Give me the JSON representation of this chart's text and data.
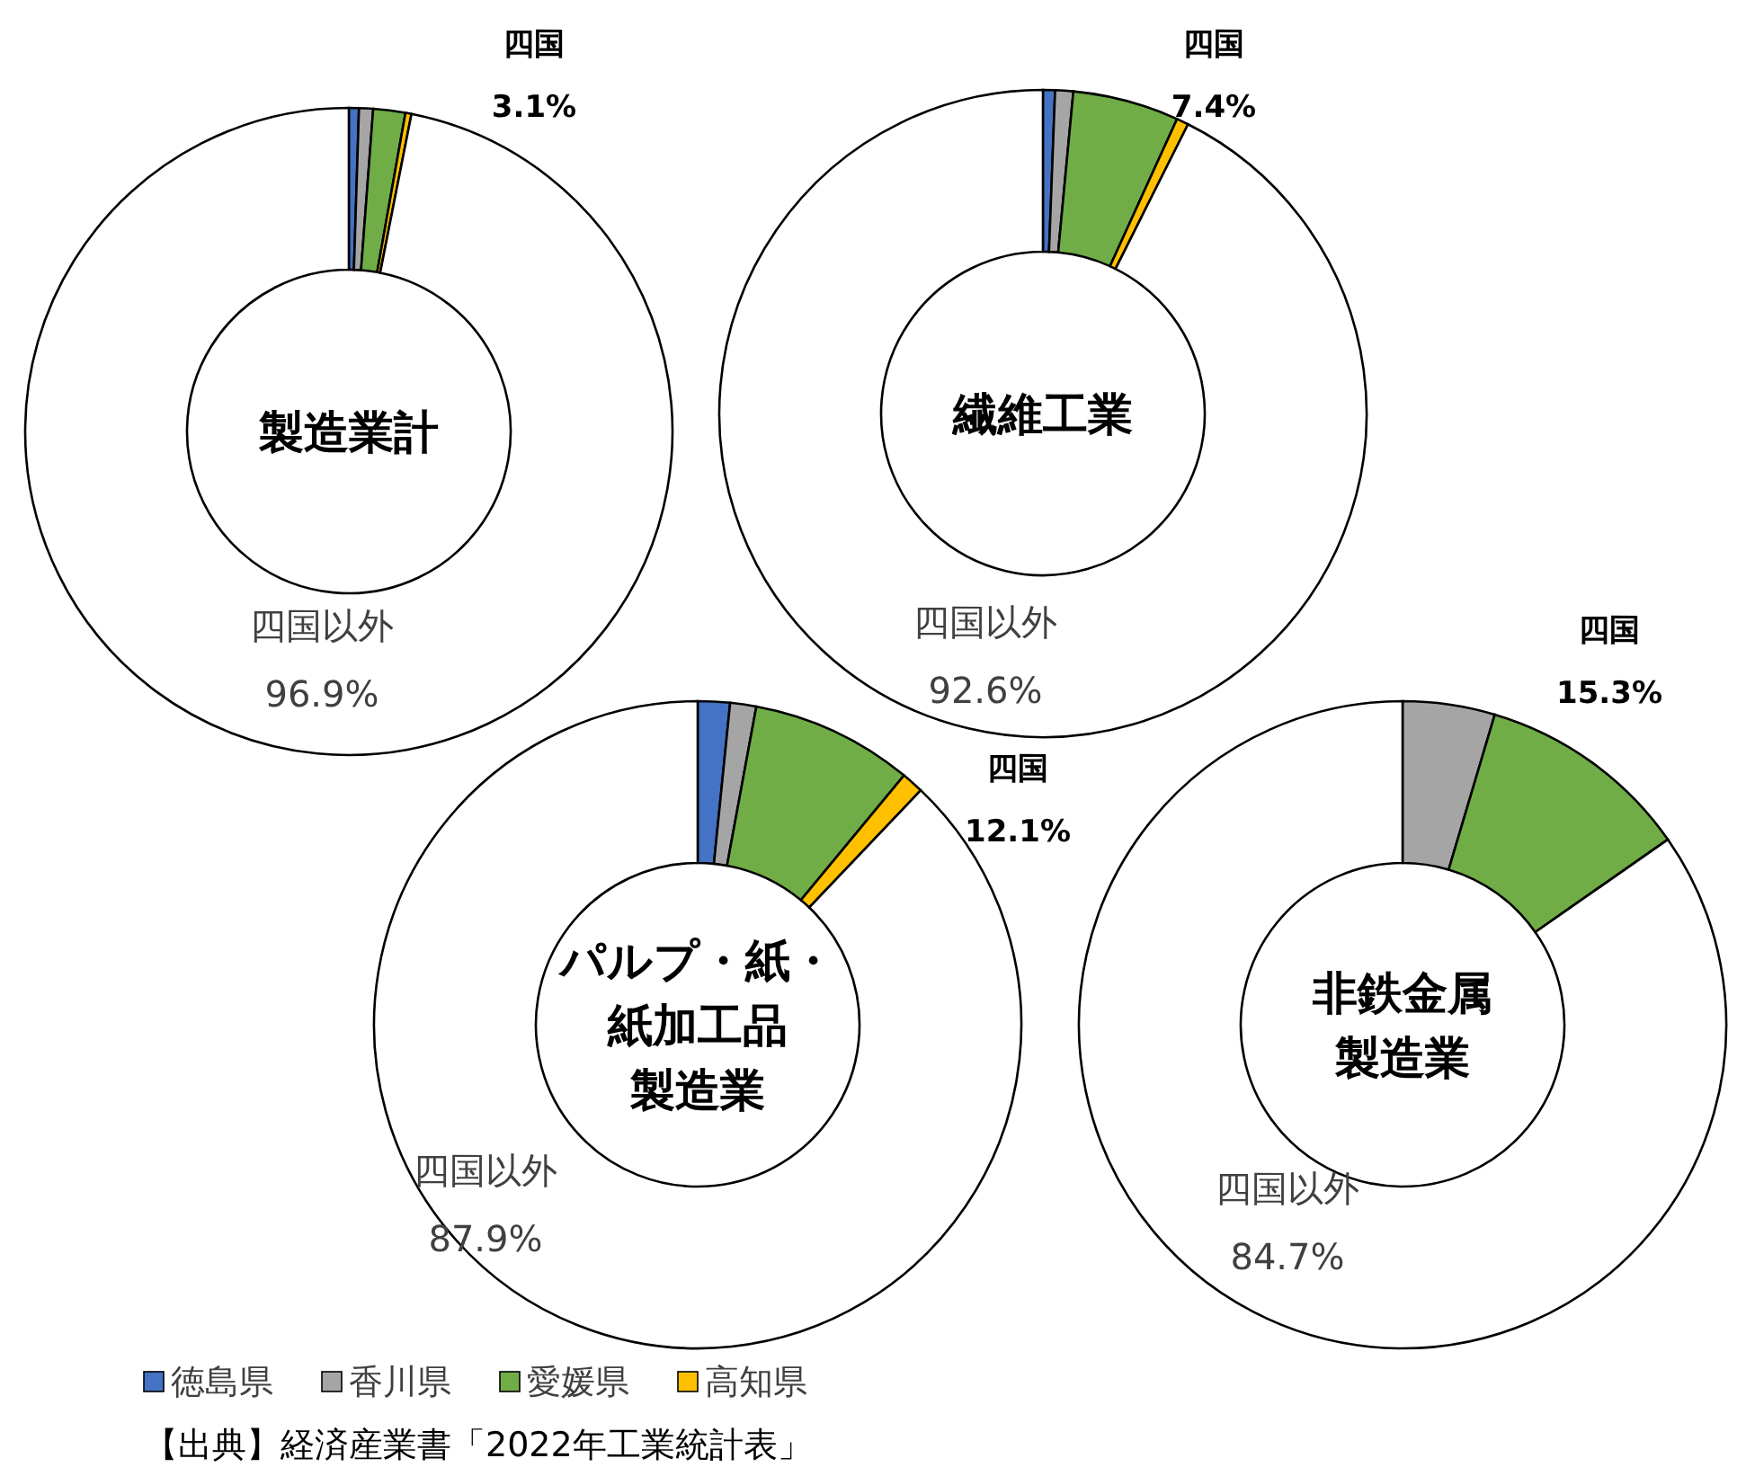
{
  "chart_data": [
    {
      "type": "donut",
      "title": "製造業計",
      "categories": [
        null,
        null,
        null,
        null,
        "四国以外"
      ],
      "values": [
        0.5,
        0.7,
        1.6,
        0.3,
        96.9
      ],
      "colors": [
        "#4472c4",
        "#a5a5a5",
        "#70ad47",
        "#ffc000",
        "#ffffff"
      ],
      "value_labels": [
        null,
        null,
        null,
        null,
        "96.9%"
      ],
      "annotations": [
        "四国",
        "3.1%"
      ],
      "legend": false
    },
    {
      "type": "donut",
      "title": "繊維工業",
      "categories": [
        null,
        null,
        null,
        null,
        "四国以外"
      ],
      "values": [
        0.6,
        0.9,
        5.3,
        0.6,
        92.6
      ],
      "colors": [
        "#4472c4",
        "#a5a5a5",
        "#70ad47",
        "#ffc000",
        "#ffffff"
      ],
      "value_labels": [
        null,
        null,
        null,
        null,
        "92.6%"
      ],
      "annotations": [
        "四国",
        "7.4%"
      ],
      "legend": false
    },
    {
      "type": "donut",
      "title": "パルプ・紙・紙加工品製造業",
      "categories": [
        "徳島県",
        "香川県",
        "愛媛県",
        "高知県",
        "四国以外"
      ],
      "values": [
        1.6,
        1.3,
        8.1,
        1.1,
        87.9
      ],
      "colors": [
        "#4472c4",
        "#a5a5a5",
        "#70ad47",
        "#ffc000",
        "#ffffff"
      ],
      "value_labels": [
        null,
        null,
        null,
        null,
        "87.9%"
      ],
      "annotations": [
        "四国",
        "12.1%",
        "【出典】経済産業書「2022年工業統計表」"
      ],
      "legend": "bottom"
    },
    {
      "type": "donut",
      "title": "非鉄金属製造業",
      "categories": [
        null,
        null,
        null,
        null,
        "四国以外"
      ],
      "values": [
        0,
        4.6,
        10.7,
        0,
        84.7
      ],
      "colors": [
        "#4472c4",
        "#a5a5a5",
        "#70ad47",
        "#ffc000",
        "#ffffff"
      ],
      "value_labels": [
        null,
        null,
        null,
        null,
        "84.7%"
      ],
      "annotations": [
        "四国",
        "15.3%"
      ],
      "legend": false
    }
  ]
}
